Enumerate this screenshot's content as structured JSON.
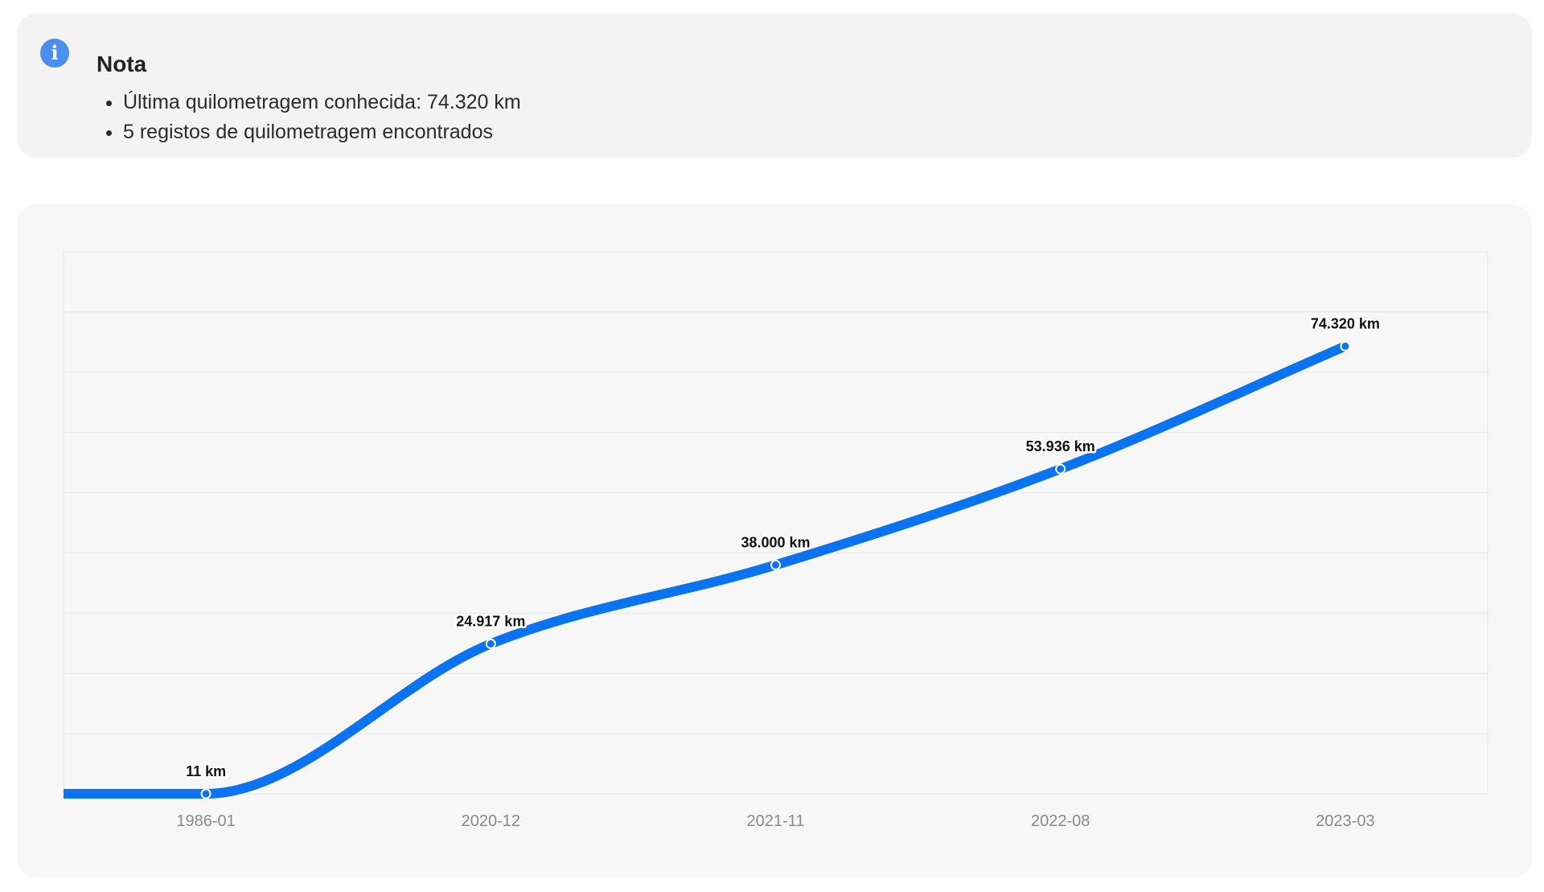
{
  "note": {
    "icon": "info-icon",
    "title": "Nota",
    "items": [
      "Última quilometragem conhecida: 74.320 km",
      "5 registos de quilometragem encontrados"
    ]
  },
  "colors": {
    "line": "#0b73f0",
    "info": "#4a8ff0",
    "grid": "#e6e6e8",
    "tick_text": "#8a8a8a"
  },
  "chart_data": {
    "type": "line",
    "categories": [
      "1986-01",
      "2020-12",
      "2021-11",
      "2022-08",
      "2023-03"
    ],
    "values": [
      11,
      24917,
      38000,
      53936,
      74320
    ],
    "data_labels": [
      "11 km",
      "24.917 km",
      "38.000 km",
      "53.936 km",
      "74.320 km"
    ],
    "title": "",
    "xlabel": "",
    "ylabel": "",
    "ylim": [
      0,
      90000
    ],
    "grid": true,
    "legend": "none",
    "y_tick_labels_shown": false
  }
}
